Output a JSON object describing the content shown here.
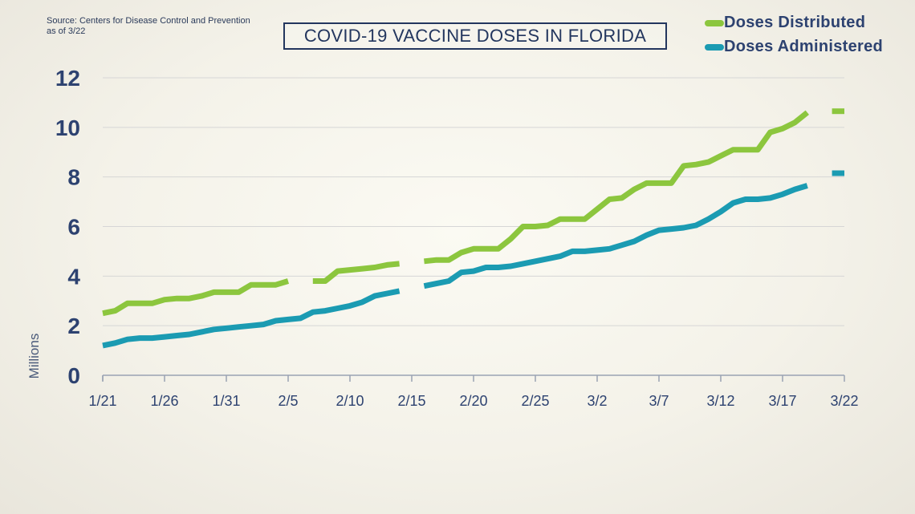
{
  "source_lines": [
    "Source: Centers for Disease Control and Prevention",
    "as of 3/22"
  ],
  "title": "COVID-19 VACCINE DOSES IN FLORIDA",
  "colors": {
    "distributed": "#8cc63e",
    "administered": "#1b9bb2",
    "axis_text": "#2d4270",
    "grid": "#d6d6d6"
  },
  "chart_data": {
    "type": "line",
    "title": "COVID-19 VACCINE DOSES IN FLORIDA",
    "xlabel": "",
    "ylabel": "Millions",
    "ylim": [
      0,
      12
    ],
    "yticks": [
      0,
      2,
      4,
      6,
      8,
      10,
      12
    ],
    "x_tick_labels": [
      "1/21",
      "1/26",
      "1/31",
      "2/5",
      "2/10",
      "2/15",
      "2/20",
      "2/25",
      "3/2",
      "3/7",
      "3/12",
      "3/17",
      "3/22"
    ],
    "x_tick_dates": [
      "1/21",
      "1/26",
      "1/31",
      "2/5",
      "2/10",
      "2/15",
      "2/20",
      "2/25",
      "3/2",
      "3/7",
      "3/12",
      "3/17",
      "3/22"
    ],
    "grid": "horizontal",
    "legend_position": "top-right",
    "dates": [
      "1/21",
      "1/22",
      "1/23",
      "1/24",
      "1/25",
      "1/26",
      "1/27",
      "1/28",
      "1/29",
      "1/30",
      "1/31",
      "2/1",
      "2/2",
      "2/3",
      "2/4",
      "2/5",
      "2/6",
      "2/7",
      "2/8",
      "2/9",
      "2/10",
      "2/11",
      "2/12",
      "2/13",
      "2/14",
      "2/15",
      "2/16",
      "2/17",
      "2/18",
      "2/19",
      "2/20",
      "2/21",
      "2/22",
      "2/23",
      "2/24",
      "2/25",
      "2/26",
      "2/27",
      "2/28",
      "3/1",
      "3/2",
      "3/3",
      "3/4",
      "3/5",
      "3/6",
      "3/7",
      "3/8",
      "3/9",
      "3/10",
      "3/11",
      "3/12",
      "3/13",
      "3/14",
      "3/15",
      "3/16",
      "3/17",
      "3/18",
      "3/19",
      "3/20",
      "3/21",
      "3/22"
    ],
    "series": [
      {
        "name": "Doses Distributed",
        "values": [
          2.5,
          2.6,
          2.9,
          2.9,
          2.9,
          3.05,
          3.1,
          3.1,
          3.2,
          3.35,
          3.35,
          3.35,
          3.65,
          3.65,
          3.65,
          3.8,
          null,
          3.8,
          3.8,
          4.2,
          4.25,
          4.3,
          4.35,
          4.45,
          4.5,
          null,
          4.6,
          4.65,
          4.65,
          4.95,
          5.1,
          5.1,
          5.1,
          5.5,
          6.0,
          6.0,
          6.05,
          6.3,
          6.3,
          6.3,
          6.7,
          7.1,
          7.15,
          7.5,
          7.75,
          7.75,
          7.75,
          8.45,
          8.5,
          8.6,
          8.85,
          9.1,
          9.1,
          9.1,
          9.8,
          9.95,
          10.2,
          10.6,
          null,
          10.65,
          10.65
        ]
      },
      {
        "name": "Doses Administered",
        "values": [
          1.2,
          1.3,
          1.45,
          1.5,
          1.5,
          1.55,
          1.6,
          1.65,
          1.75,
          1.85,
          1.9,
          1.95,
          2.0,
          2.05,
          2.2,
          2.25,
          2.3,
          2.55,
          2.6,
          2.7,
          2.8,
          2.95,
          3.2,
          3.3,
          3.4,
          null,
          3.6,
          3.7,
          3.8,
          4.15,
          4.2,
          4.35,
          4.35,
          4.4,
          4.5,
          4.6,
          4.7,
          4.8,
          5.0,
          5.0,
          5.05,
          5.1,
          5.25,
          5.4,
          5.65,
          5.85,
          5.9,
          5.95,
          6.05,
          6.3,
          6.6,
          6.95,
          7.1,
          7.1,
          7.15,
          7.3,
          7.5,
          7.65,
          null,
          8.15,
          8.15
        ]
      }
    ]
  }
}
